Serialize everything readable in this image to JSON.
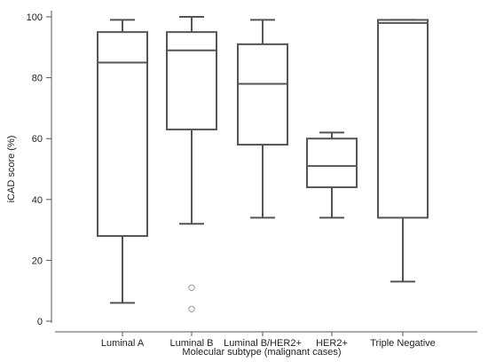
{
  "chart_data": {
    "type": "boxplot",
    "xlabel": "Molecular subtype (malignant cases)",
    "ylabel": "iCAD score (%)",
    "ylim": [
      0,
      100
    ],
    "yticks": [
      0,
      20,
      40,
      60,
      80,
      100
    ],
    "grid": false,
    "legend": "none",
    "colors": {
      "box": "#555555",
      "outlier": "#999999",
      "axis": "#555555"
    },
    "categories": [
      "Luminal A",
      "Luminal B",
      "Luminal B/HER2+",
      "HER2+",
      "Triple Negative"
    ],
    "boxes": [
      {
        "category": "Luminal A",
        "whisker_low": 6,
        "q1": 28,
        "median": 85,
        "q3": 95,
        "whisker_high": 99,
        "outliers": []
      },
      {
        "category": "Luminal B",
        "whisker_low": 32,
        "q1": 63,
        "median": 89,
        "q3": 95,
        "whisker_high": 100,
        "outliers": [
          11,
          4
        ]
      },
      {
        "category": "Luminal B/HER2+",
        "whisker_low": 34,
        "q1": 58,
        "median": 78,
        "q3": 91,
        "whisker_high": 99,
        "outliers": []
      },
      {
        "category": "HER2+",
        "whisker_low": 34,
        "q1": 44,
        "median": 51,
        "q3": 60,
        "whisker_high": 62,
        "outliers": []
      },
      {
        "category": "Triple Negative",
        "whisker_low": 13,
        "q1": 34,
        "median": 98,
        "q3": 99,
        "whisker_high": 99,
        "outliers": []
      }
    ]
  }
}
